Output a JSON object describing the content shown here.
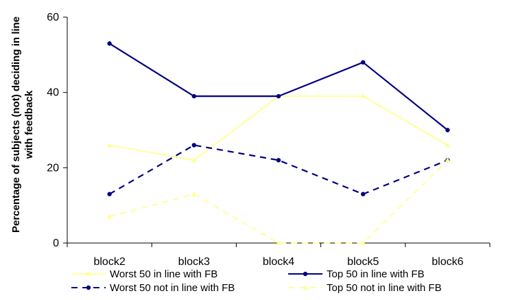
{
  "chart_data": {
    "type": "line",
    "categories": [
      "block2",
      "block3",
      "block4",
      "block5",
      "block6"
    ],
    "ylabel_lines": [
      "Percentage of subjects (not) deciding in line",
      "with feedback"
    ],
    "ylim": [
      0,
      60
    ],
    "yticks": [
      0,
      20,
      40,
      60
    ],
    "ytick_labels": [
      "0",
      "20",
      "40",
      "60"
    ],
    "grid": false,
    "legend_position": "bottom",
    "series": [
      {
        "name": "Worst 50 in line with FB",
        "values": [
          26,
          22,
          39,
          39,
          26
        ],
        "color": "#FFFF99",
        "dashed": false,
        "marker": "triangle"
      },
      {
        "name": "Top 50 in line with FB",
        "values": [
          53,
          39,
          39,
          48,
          30
        ],
        "color": "#000080",
        "dashed": false,
        "marker": "circle"
      },
      {
        "name": "Worst 50 not in line with FB",
        "values": [
          13,
          26,
          22,
          13,
          22
        ],
        "color": "#000080",
        "dashed": true,
        "marker": "circle"
      },
      {
        "name": "Top 50 not in line with FB",
        "values": [
          7,
          13,
          0,
          0,
          22
        ],
        "color": "#FFFF99",
        "dashed": true,
        "marker": "triangle"
      }
    ]
  }
}
